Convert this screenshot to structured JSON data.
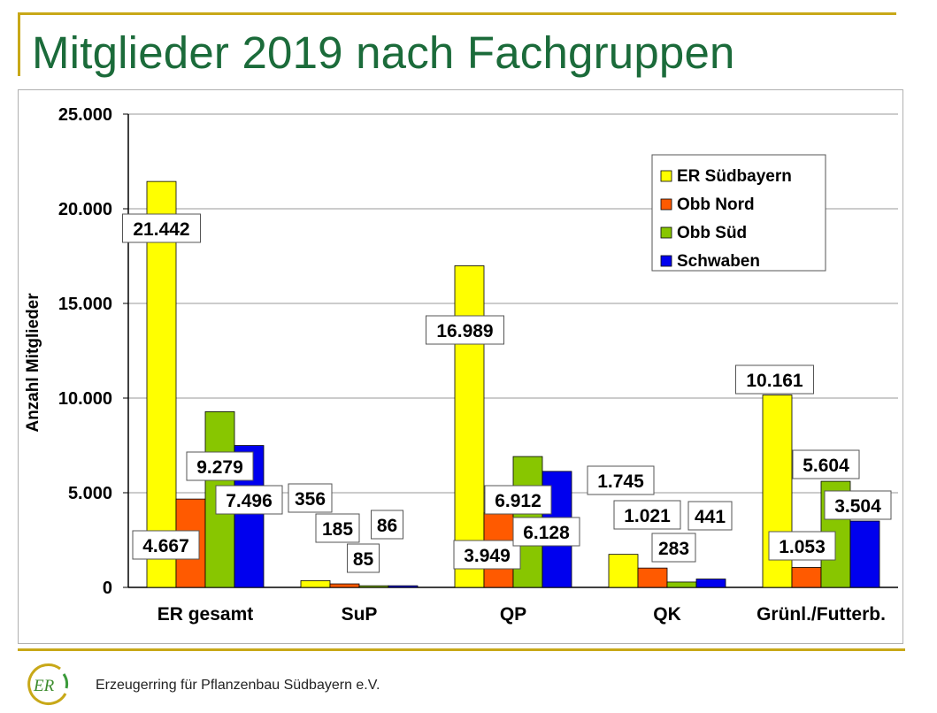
{
  "slide": {
    "title": "Mitglieder 2019 nach Fachgruppen",
    "footer": "Erzeugerring für Pflanzenbau Südbayern e.V.",
    "logo_text": "ER"
  },
  "colors": {
    "title": "#1b6b3a",
    "rule": "#c8a818",
    "series": [
      "#ffff00",
      "#ff5a00",
      "#88c600",
      "#0000ee"
    ]
  },
  "chart_data": {
    "type": "bar",
    "ylabel": "Anzahl Mitglieder",
    "xlabel": "",
    "ylim": [
      0,
      25000
    ],
    "yticks": [
      0,
      5000,
      10000,
      15000,
      20000,
      25000
    ],
    "ytick_labels": [
      "0",
      "5.000",
      "10.000",
      "15.000",
      "20.000",
      "25.000"
    ],
    "grid": true,
    "legend_position": "top-right",
    "categories": [
      "ER gesamt",
      "SuP",
      "QP",
      "QK",
      "Grünl./Futterb."
    ],
    "series": [
      {
        "name": "ER Südbayern",
        "values": [
          21442,
          356,
          16989,
          1745,
          10161
        ],
        "labels": [
          "21.442",
          "356",
          "16.989",
          "1.745",
          "10.161"
        ]
      },
      {
        "name": "Obb Nord",
        "values": [
          4667,
          185,
          3949,
          1021,
          1053
        ],
        "labels": [
          "4.667",
          "185",
          "3.949",
          "1.021",
          "1.053"
        ]
      },
      {
        "name": "Obb Süd",
        "values": [
          9279,
          85,
          6912,
          283,
          5604
        ],
        "labels": [
          "9.279",
          "85",
          "6.912",
          "283",
          "5.604"
        ]
      },
      {
        "name": "Schwaben",
        "values": [
          7496,
          86,
          6128,
          441,
          3504
        ],
        "labels": [
          "7.496",
          "86",
          "6.128",
          "441",
          "3.504"
        ]
      }
    ]
  }
}
